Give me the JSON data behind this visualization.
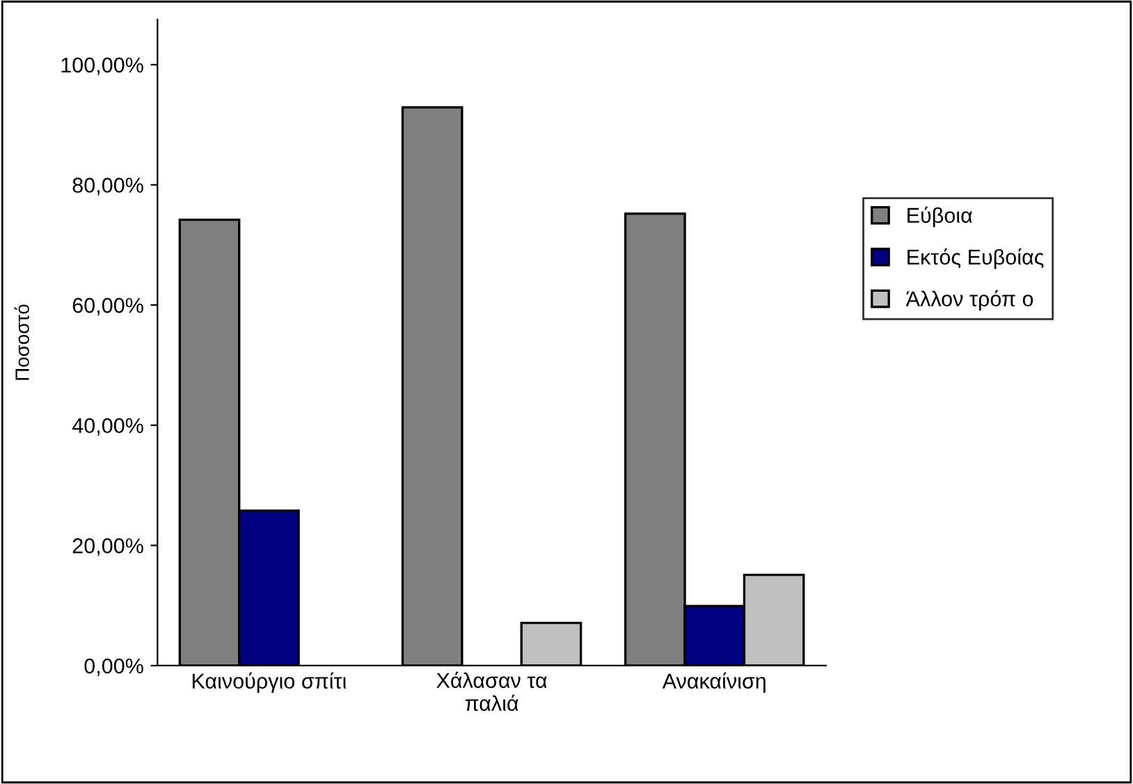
{
  "chart_data": {
    "type": "bar",
    "ylabel": "Ποσοστό",
    "categories": [
      "Καινούργιο σπίτι",
      "Χάλασαν τα\nπαλιά",
      "Ανακαίνιση"
    ],
    "series": [
      {
        "name": "Εύβοια",
        "color": "#808080",
        "values": [
          74.2,
          92.9,
          75.2
        ]
      },
      {
        "name": "Εκτός Ευβοίας",
        "color": "#000080",
        "values": [
          25.8,
          null,
          9.9
        ]
      },
      {
        "name": "Άλλον τρόπ ο",
        "color": "#c0c0c0",
        "values": [
          null,
          7.1,
          15.1
        ]
      }
    ],
    "ylim": [
      0,
      107.5
    ],
    "yticks": [
      {
        "value": 0,
        "label": "0,00%"
      },
      {
        "value": 20,
        "label": "20,00%"
      },
      {
        "value": 40,
        "label": "40,00%"
      },
      {
        "value": 60,
        "label": "60,00%"
      },
      {
        "value": 80,
        "label": "80,00%"
      },
      {
        "value": 100,
        "label": "100,00%"
      }
    ],
    "legend": "right",
    "grid": false
  }
}
